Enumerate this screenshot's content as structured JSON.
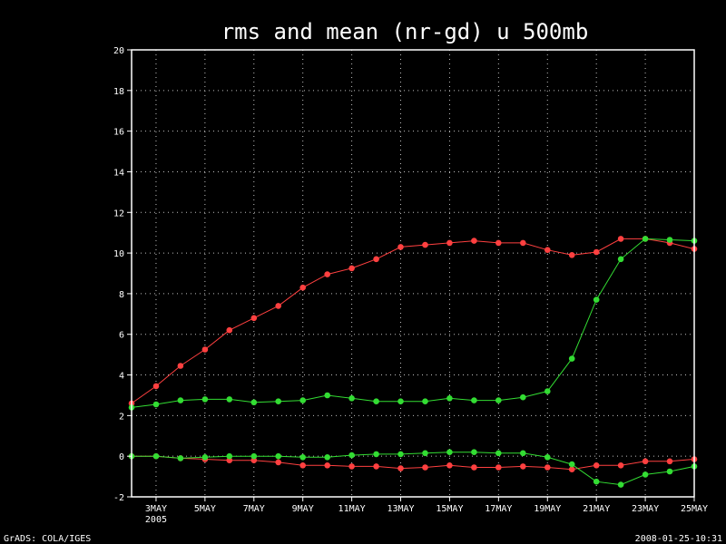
{
  "footer": {
    "left": "GrADS: COLA/IGES",
    "right": "2008-01-25-10:31"
  },
  "colors": {
    "background": "#000000",
    "axes": "#ffffff",
    "grid": "#c0c0c0",
    "red_series": "#ff4040",
    "green_series": "#33dd33"
  },
  "chart_data": {
    "type": "line",
    "title": "rms and mean (nr-gd) u 500mb",
    "xlabel": "",
    "ylabel": "",
    "ylim": [
      -2,
      20
    ],
    "xlim": [
      "2005-05-02",
      "2005-05-25"
    ],
    "grid": true,
    "yticks": [
      -2,
      0,
      2,
      4,
      6,
      8,
      10,
      12,
      14,
      16,
      18,
      20
    ],
    "xticks": [
      {
        "date": "2005-05-03",
        "label": "3MAY",
        "sublabel": "2005"
      },
      {
        "date": "2005-05-05",
        "label": "5MAY"
      },
      {
        "date": "2005-05-07",
        "label": "7MAY"
      },
      {
        "date": "2005-05-09",
        "label": "9MAY"
      },
      {
        "date": "2005-05-11",
        "label": "11MAY"
      },
      {
        "date": "2005-05-13",
        "label": "13MAY"
      },
      {
        "date": "2005-05-15",
        "label": "15MAY"
      },
      {
        "date": "2005-05-17",
        "label": "17MAY"
      },
      {
        "date": "2005-05-19",
        "label": "19MAY"
      },
      {
        "date": "2005-05-21",
        "label": "21MAY"
      },
      {
        "date": "2005-05-23",
        "label": "23MAY"
      },
      {
        "date": "2005-05-25",
        "label": "25MAY"
      }
    ],
    "x": [
      "2005-05-02",
      "2005-05-03",
      "2005-05-04",
      "2005-05-05",
      "2005-05-06",
      "2005-05-07",
      "2005-05-08",
      "2005-05-09",
      "2005-05-10",
      "2005-05-11",
      "2005-05-12",
      "2005-05-13",
      "2005-05-14",
      "2005-05-15",
      "2005-05-16",
      "2005-05-17",
      "2005-05-18",
      "2005-05-19",
      "2005-05-20",
      "2005-05-21",
      "2005-05-22",
      "2005-05-23",
      "2005-05-24",
      "2005-05-25"
    ],
    "series": [
      {
        "color": "#ff4040",
        "values": [
          2.6,
          3.45,
          4.45,
          5.25,
          6.2,
          6.8,
          7.4,
          8.3,
          8.95,
          9.25,
          9.7,
          10.3,
          10.4,
          10.5,
          10.6,
          10.5,
          10.5,
          10.15,
          9.9,
          10.05,
          10.7,
          10.7,
          10.5,
          10.2
        ]
      },
      {
        "color": "#33dd33",
        "values": [
          2.4,
          2.55,
          2.75,
          2.8,
          2.8,
          2.65,
          2.7,
          2.75,
          3.0,
          2.85,
          2.7,
          2.7,
          2.7,
          2.85,
          2.75,
          2.75,
          2.9,
          3.2,
          4.8,
          7.7,
          9.7,
          10.7,
          10.65,
          10.6
        ]
      },
      {
        "color": "#ff4040",
        "values": [
          0.0,
          0.0,
          -0.1,
          -0.15,
          -0.2,
          -0.2,
          -0.3,
          -0.45,
          -0.45,
          -0.5,
          -0.5,
          -0.6,
          -0.55,
          -0.45,
          -0.55,
          -0.55,
          -0.5,
          -0.55,
          -0.65,
          -0.45,
          -0.45,
          -0.25,
          -0.25,
          -0.15
        ]
      },
      {
        "color": "#33dd33",
        "values": [
          0.0,
          0.0,
          -0.1,
          -0.05,
          0.0,
          0.0,
          0.0,
          -0.05,
          -0.05,
          0.05,
          0.1,
          0.1,
          0.15,
          0.2,
          0.2,
          0.15,
          0.15,
          -0.05,
          -0.4,
          -1.25,
          -1.4,
          -0.9,
          -0.75,
          -0.5
        ]
      }
    ]
  }
}
